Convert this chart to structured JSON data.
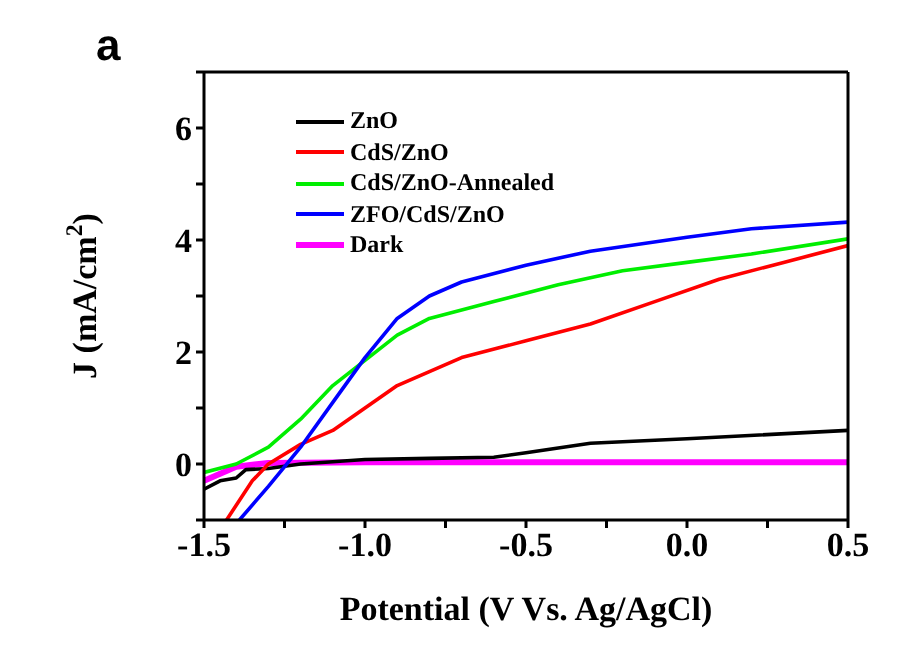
{
  "chart_data": {
    "type": "line",
    "title": "a",
    "xlabel": "Potential (V Vs. Ag/AgCl)",
    "ylabel": "J (mA/cm$^{2}$)",
    "xlim": [
      -1.5,
      0.5
    ],
    "ylim": [
      -1,
      7
    ],
    "xticks": [
      {
        "value": -1.5,
        "label": "-1.5"
      },
      {
        "value": -1.25,
        "label": null
      },
      {
        "value": -1,
        "label": "-1.0"
      },
      {
        "value": -0.75,
        "label": null
      },
      {
        "value": -0.5,
        "label": "-0.5"
      },
      {
        "value": -0.25,
        "label": null
      },
      {
        "value": 0,
        "label": "0.0"
      },
      {
        "value": 0.25,
        "label": null
      },
      {
        "value": 0.5,
        "label": "0.5"
      }
    ],
    "yticks": [
      {
        "value": -1,
        "label": null
      },
      0,
      {
        "value": 1,
        "label": null
      },
      2,
      {
        "value": 3,
        "label": null
      },
      4,
      {
        "value": 5,
        "label": null
      },
      6,
      {
        "value": 7,
        "label": null
      }
    ],
    "legend": "top left",
    "marker": "none",
    "line_style": "solid",
    "series": [
      {
        "name": "ZnO",
        "color": "#000000",
        "x": [
          -1.5,
          -1.45,
          -1.4,
          -1.37,
          -1.3,
          -1.2,
          -1.0,
          -0.8,
          -0.6,
          -0.5,
          -0.3,
          0,
          0.5
        ],
        "values": [
          -0.45,
          -0.3,
          -0.25,
          -0.1,
          -0.08,
          0,
          0.08,
          0.1,
          0.12,
          0.2,
          0.37,
          0.45,
          0.6
        ]
      },
      {
        "name": "CdS/ZnO",
        "color": "#ff0000",
        "x": [
          -1.43,
          -1.35,
          -1.3,
          -1.2,
          -1.1,
          -1.0,
          -0.9,
          -0.8,
          -0.7,
          -0.5,
          -0.3,
          -0.1,
          0.1,
          0.3,
          0.5
        ],
        "values": [
          -1,
          -0.3,
          0,
          0.35,
          0.6,
          1.0,
          1.4,
          1.65,
          1.9,
          2.2,
          2.5,
          2.9,
          3.3,
          3.6,
          3.9
        ]
      },
      {
        "name": "CdS/ZnO-Annealed",
        "color": "#00ee00",
        "x": [
          -1.5,
          -1.4,
          -1.3,
          -1.2,
          -1.1,
          -1.0,
          -0.9,
          -0.8,
          -0.6,
          -0.4,
          -0.2,
          0,
          0.2,
          0.5
        ],
        "values": [
          -0.15,
          0,
          0.3,
          0.8,
          1.4,
          1.85,
          2.3,
          2.6,
          2.9,
          3.2,
          3.45,
          3.6,
          3.75,
          4.02
        ]
      },
      {
        "name": "ZFO/CdS/ZnO",
        "color": "#0000ff",
        "x": [
          -1.39,
          -1.3,
          -1.2,
          -1.1,
          -1.0,
          -0.9,
          -0.8,
          -0.7,
          -0.5,
          -0.3,
          0,
          0.2,
          0.5
        ],
        "values": [
          -1,
          -0.4,
          0.3,
          1.1,
          1.9,
          2.6,
          3.0,
          3.25,
          3.55,
          3.8,
          4.05,
          4.2,
          4.32
        ]
      },
      {
        "name": "Dark",
        "color": "#ff00ff",
        "x": [
          -1.5,
          -1.4,
          -1.3,
          -1.0,
          0.5
        ],
        "values": [
          -0.3,
          -0.05,
          0.02,
          0.03,
          0.03
        ]
      }
    ]
  }
}
